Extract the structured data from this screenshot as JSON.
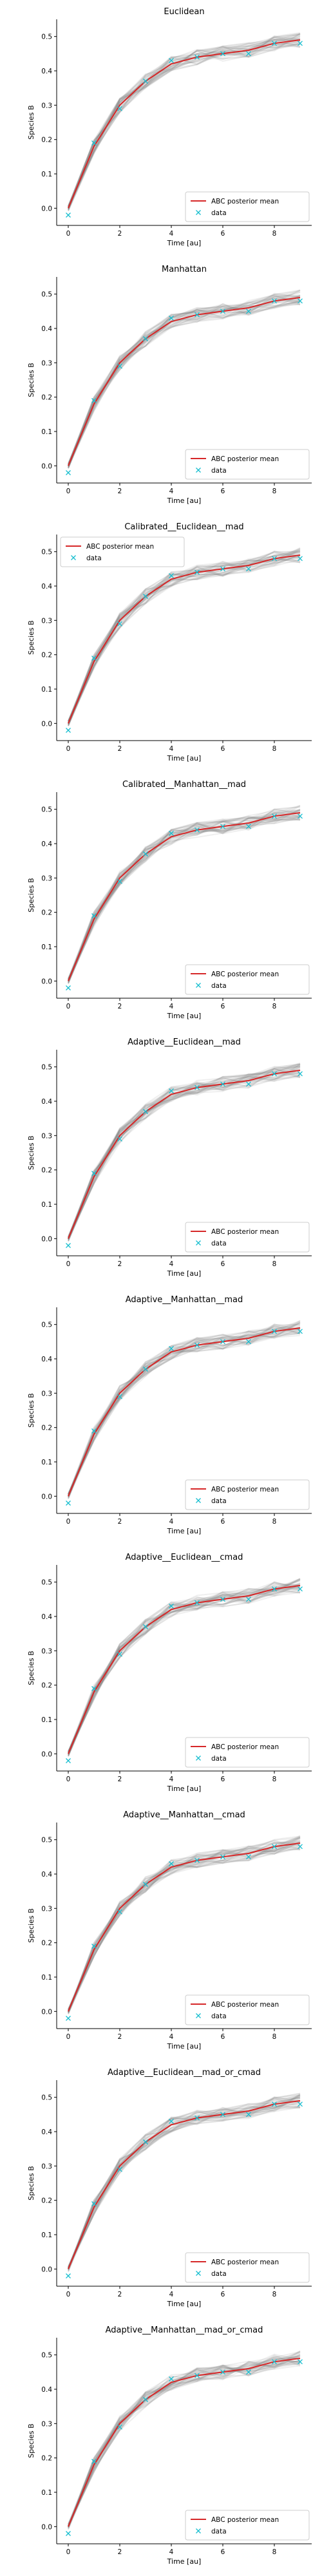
{
  "figure": {
    "background": "#ffffff"
  },
  "colors": {
    "mean": "#d62728",
    "data": "#17becf",
    "samples": "#7f7f7f"
  },
  "chart_data": [
    {
      "type": "line",
      "title": "Euclidean",
      "xlabel": "Time [au]",
      "ylabel": "Species B",
      "xlim": [
        -0.45,
        9.45
      ],
      "ylim": [
        -0.05,
        0.55
      ],
      "xticks": [
        0,
        2,
        4,
        6,
        8
      ],
      "yticks": [
        0.0,
        0.1,
        0.2,
        0.3,
        0.4,
        0.5
      ],
      "legend": {
        "position": "lower-right",
        "entries": [
          "ABC posterior mean",
          "data"
        ]
      },
      "series": [
        {
          "name": "ABC posterior mean",
          "style": "line",
          "x": [
            0,
            1,
            2,
            3,
            4,
            5,
            6,
            7,
            8,
            9
          ],
          "values": [
            0.0,
            0.18,
            0.3,
            0.37,
            0.42,
            0.44,
            0.45,
            0.46,
            0.48,
            0.49
          ]
        },
        {
          "name": "data",
          "style": "marker",
          "x": [
            0,
            1,
            2,
            3,
            4,
            5,
            6,
            7,
            8,
            9
          ],
          "values": [
            -0.02,
            0.19,
            0.29,
            0.37,
            0.43,
            0.44,
            0.45,
            0.45,
            0.48,
            0.48
          ]
        }
      ]
    },
    {
      "type": "line",
      "title": "Manhattan",
      "xlabel": "Time [au]",
      "ylabel": "Species B",
      "xlim": [
        -0.45,
        9.45
      ],
      "ylim": [
        -0.05,
        0.55
      ],
      "xticks": [
        0,
        2,
        4,
        6,
        8
      ],
      "yticks": [
        0.0,
        0.1,
        0.2,
        0.3,
        0.4,
        0.5
      ],
      "legend": {
        "position": "lower-right",
        "entries": [
          "ABC posterior mean",
          "data"
        ]
      },
      "series": [
        {
          "name": "ABC posterior mean",
          "style": "line",
          "x": [
            0,
            1,
            2,
            3,
            4,
            5,
            6,
            7,
            8,
            9
          ],
          "values": [
            0.0,
            0.18,
            0.3,
            0.37,
            0.42,
            0.44,
            0.45,
            0.46,
            0.48,
            0.49
          ]
        },
        {
          "name": "data",
          "style": "marker",
          "x": [
            0,
            1,
            2,
            3,
            4,
            5,
            6,
            7,
            8,
            9
          ],
          "values": [
            -0.02,
            0.19,
            0.29,
            0.37,
            0.43,
            0.44,
            0.45,
            0.45,
            0.48,
            0.48
          ]
        }
      ]
    },
    {
      "type": "line",
      "title": "Calibrated__Euclidean__mad",
      "xlabel": "Time [au]",
      "ylabel": "Species B",
      "xlim": [
        -0.45,
        9.45
      ],
      "ylim": [
        -0.05,
        0.55
      ],
      "xticks": [
        0,
        2,
        4,
        6,
        8
      ],
      "yticks": [
        0.0,
        0.1,
        0.2,
        0.3,
        0.4,
        0.5
      ],
      "legend": {
        "position": "upper-left",
        "entries": [
          "ABC posterior mean",
          "data"
        ]
      },
      "series": [
        {
          "name": "ABC posterior mean",
          "style": "line",
          "x": [
            0,
            1,
            2,
            3,
            4,
            5,
            6,
            7,
            8,
            9
          ],
          "values": [
            0.0,
            0.18,
            0.3,
            0.37,
            0.42,
            0.44,
            0.45,
            0.46,
            0.48,
            0.49
          ]
        },
        {
          "name": "data",
          "style": "marker",
          "x": [
            0,
            1,
            2,
            3,
            4,
            5,
            6,
            7,
            8,
            9
          ],
          "values": [
            -0.02,
            0.19,
            0.29,
            0.37,
            0.43,
            0.44,
            0.45,
            0.45,
            0.48,
            0.48
          ]
        }
      ]
    },
    {
      "type": "line",
      "title": "Calibrated__Manhattan__mad",
      "xlabel": "Time [au]",
      "ylabel": "Species B",
      "xlim": [
        -0.45,
        9.45
      ],
      "ylim": [
        -0.05,
        0.55
      ],
      "xticks": [
        0,
        2,
        4,
        6,
        8
      ],
      "yticks": [
        0.0,
        0.1,
        0.2,
        0.3,
        0.4,
        0.5
      ],
      "legend": {
        "position": "lower-right",
        "entries": [
          "ABC posterior mean",
          "data"
        ]
      },
      "series": [
        {
          "name": "ABC posterior mean",
          "style": "line",
          "x": [
            0,
            1,
            2,
            3,
            4,
            5,
            6,
            7,
            8,
            9
          ],
          "values": [
            0.0,
            0.18,
            0.3,
            0.37,
            0.42,
            0.44,
            0.45,
            0.46,
            0.48,
            0.49
          ]
        },
        {
          "name": "data",
          "style": "marker",
          "x": [
            0,
            1,
            2,
            3,
            4,
            5,
            6,
            7,
            8,
            9
          ],
          "values": [
            -0.02,
            0.19,
            0.29,
            0.37,
            0.43,
            0.44,
            0.45,
            0.45,
            0.48,
            0.48
          ]
        }
      ]
    },
    {
      "type": "line",
      "title": "Adaptive__Euclidean__mad",
      "xlabel": "Time [au]",
      "ylabel": "Species B",
      "xlim": [
        -0.45,
        9.45
      ],
      "ylim": [
        -0.05,
        0.55
      ],
      "xticks": [
        0,
        2,
        4,
        6,
        8
      ],
      "yticks": [
        0.0,
        0.1,
        0.2,
        0.3,
        0.4,
        0.5
      ],
      "legend": {
        "position": "lower-right",
        "entries": [
          "ABC posterior mean",
          "data"
        ]
      },
      "series": [
        {
          "name": "ABC posterior mean",
          "style": "line",
          "x": [
            0,
            1,
            2,
            3,
            4,
            5,
            6,
            7,
            8,
            9
          ],
          "values": [
            0.0,
            0.18,
            0.3,
            0.37,
            0.42,
            0.44,
            0.45,
            0.46,
            0.48,
            0.49
          ]
        },
        {
          "name": "data",
          "style": "marker",
          "x": [
            0,
            1,
            2,
            3,
            4,
            5,
            6,
            7,
            8,
            9
          ],
          "values": [
            -0.02,
            0.19,
            0.29,
            0.37,
            0.43,
            0.44,
            0.45,
            0.45,
            0.48,
            0.48
          ]
        }
      ]
    },
    {
      "type": "line",
      "title": "Adaptive__Manhattan__mad",
      "xlabel": "Time [au]",
      "ylabel": "Species B",
      "xlim": [
        -0.45,
        9.45
      ],
      "ylim": [
        -0.05,
        0.55
      ],
      "xticks": [
        0,
        2,
        4,
        6,
        8
      ],
      "yticks": [
        0.0,
        0.1,
        0.2,
        0.3,
        0.4,
        0.5
      ],
      "legend": {
        "position": "lower-right",
        "entries": [
          "ABC posterior mean",
          "data"
        ]
      },
      "series": [
        {
          "name": "ABC posterior mean",
          "style": "line",
          "x": [
            0,
            1,
            2,
            3,
            4,
            5,
            6,
            7,
            8,
            9
          ],
          "values": [
            0.0,
            0.18,
            0.3,
            0.37,
            0.42,
            0.44,
            0.45,
            0.46,
            0.48,
            0.49
          ]
        },
        {
          "name": "data",
          "style": "marker",
          "x": [
            0,
            1,
            2,
            3,
            4,
            5,
            6,
            7,
            8,
            9
          ],
          "values": [
            -0.02,
            0.19,
            0.29,
            0.37,
            0.43,
            0.44,
            0.45,
            0.45,
            0.48,
            0.48
          ]
        }
      ]
    },
    {
      "type": "line",
      "title": "Adaptive__Euclidean__cmad",
      "xlabel": "Time [au]",
      "ylabel": "Species B",
      "xlim": [
        -0.45,
        9.45
      ],
      "ylim": [
        -0.05,
        0.55
      ],
      "xticks": [
        0,
        2,
        4,
        6,
        8
      ],
      "yticks": [
        0.0,
        0.1,
        0.2,
        0.3,
        0.4,
        0.5
      ],
      "legend": {
        "position": "lower-right",
        "entries": [
          "ABC posterior mean",
          "data"
        ]
      },
      "series": [
        {
          "name": "ABC posterior mean",
          "style": "line",
          "x": [
            0,
            1,
            2,
            3,
            4,
            5,
            6,
            7,
            8,
            9
          ],
          "values": [
            0.0,
            0.18,
            0.3,
            0.37,
            0.42,
            0.44,
            0.45,
            0.46,
            0.48,
            0.49
          ]
        },
        {
          "name": "data",
          "style": "marker",
          "x": [
            0,
            1,
            2,
            3,
            4,
            5,
            6,
            7,
            8,
            9
          ],
          "values": [
            -0.02,
            0.19,
            0.29,
            0.37,
            0.43,
            0.44,
            0.45,
            0.45,
            0.48,
            0.48
          ]
        }
      ]
    },
    {
      "type": "line",
      "title": "Adaptive__Manhattan__cmad",
      "xlabel": "Time [au]",
      "ylabel": "Species B",
      "xlim": [
        -0.45,
        9.45
      ],
      "ylim": [
        -0.05,
        0.55
      ],
      "xticks": [
        0,
        2,
        4,
        6,
        8
      ],
      "yticks": [
        0.0,
        0.1,
        0.2,
        0.3,
        0.4,
        0.5
      ],
      "legend": {
        "position": "lower-right",
        "entries": [
          "ABC posterior mean",
          "data"
        ]
      },
      "series": [
        {
          "name": "ABC posterior mean",
          "style": "line",
          "x": [
            0,
            1,
            2,
            3,
            4,
            5,
            6,
            7,
            8,
            9
          ],
          "values": [
            0.0,
            0.18,
            0.3,
            0.37,
            0.42,
            0.44,
            0.45,
            0.46,
            0.48,
            0.49
          ]
        },
        {
          "name": "data",
          "style": "marker",
          "x": [
            0,
            1,
            2,
            3,
            4,
            5,
            6,
            7,
            8,
            9
          ],
          "values": [
            -0.02,
            0.19,
            0.29,
            0.37,
            0.43,
            0.44,
            0.45,
            0.45,
            0.48,
            0.48
          ]
        }
      ]
    },
    {
      "type": "line",
      "title": "Adaptive__Euclidean__mad_or_cmad",
      "xlabel": "Time [au]",
      "ylabel": "Species B",
      "xlim": [
        -0.45,
        9.45
      ],
      "ylim": [
        -0.05,
        0.55
      ],
      "xticks": [
        0,
        2,
        4,
        6,
        8
      ],
      "yticks": [
        0.0,
        0.1,
        0.2,
        0.3,
        0.4,
        0.5
      ],
      "legend": {
        "position": "lower-right",
        "entries": [
          "ABC posterior mean",
          "data"
        ]
      },
      "series": [
        {
          "name": "ABC posterior mean",
          "style": "line",
          "x": [
            0,
            1,
            2,
            3,
            4,
            5,
            6,
            7,
            8,
            9
          ],
          "values": [
            0.0,
            0.18,
            0.3,
            0.37,
            0.42,
            0.44,
            0.45,
            0.46,
            0.48,
            0.49
          ]
        },
        {
          "name": "data",
          "style": "marker",
          "x": [
            0,
            1,
            2,
            3,
            4,
            5,
            6,
            7,
            8,
            9
          ],
          "values": [
            -0.02,
            0.19,
            0.29,
            0.37,
            0.43,
            0.44,
            0.45,
            0.45,
            0.48,
            0.48
          ]
        }
      ]
    },
    {
      "type": "line",
      "title": "Adaptive__Manhattan__mad_or_cmad",
      "xlabel": "Time [au]",
      "ylabel": "Species B",
      "xlim": [
        -0.45,
        9.45
      ],
      "ylim": [
        -0.05,
        0.55
      ],
      "xticks": [
        0,
        2,
        4,
        6,
        8
      ],
      "yticks": [
        0.0,
        0.1,
        0.2,
        0.3,
        0.4,
        0.5
      ],
      "legend": {
        "position": "lower-right",
        "entries": [
          "ABC posterior mean",
          "data"
        ]
      },
      "series": [
        {
          "name": "ABC posterior mean",
          "style": "line",
          "x": [
            0,
            1,
            2,
            3,
            4,
            5,
            6,
            7,
            8,
            9
          ],
          "values": [
            0.0,
            0.18,
            0.3,
            0.37,
            0.42,
            0.44,
            0.45,
            0.46,
            0.48,
            0.49
          ]
        },
        {
          "name": "data",
          "style": "marker",
          "x": [
            0,
            1,
            2,
            3,
            4,
            5,
            6,
            7,
            8,
            9
          ],
          "values": [
            -0.02,
            0.19,
            0.29,
            0.37,
            0.43,
            0.44,
            0.45,
            0.45,
            0.48,
            0.48
          ]
        }
      ]
    }
  ]
}
